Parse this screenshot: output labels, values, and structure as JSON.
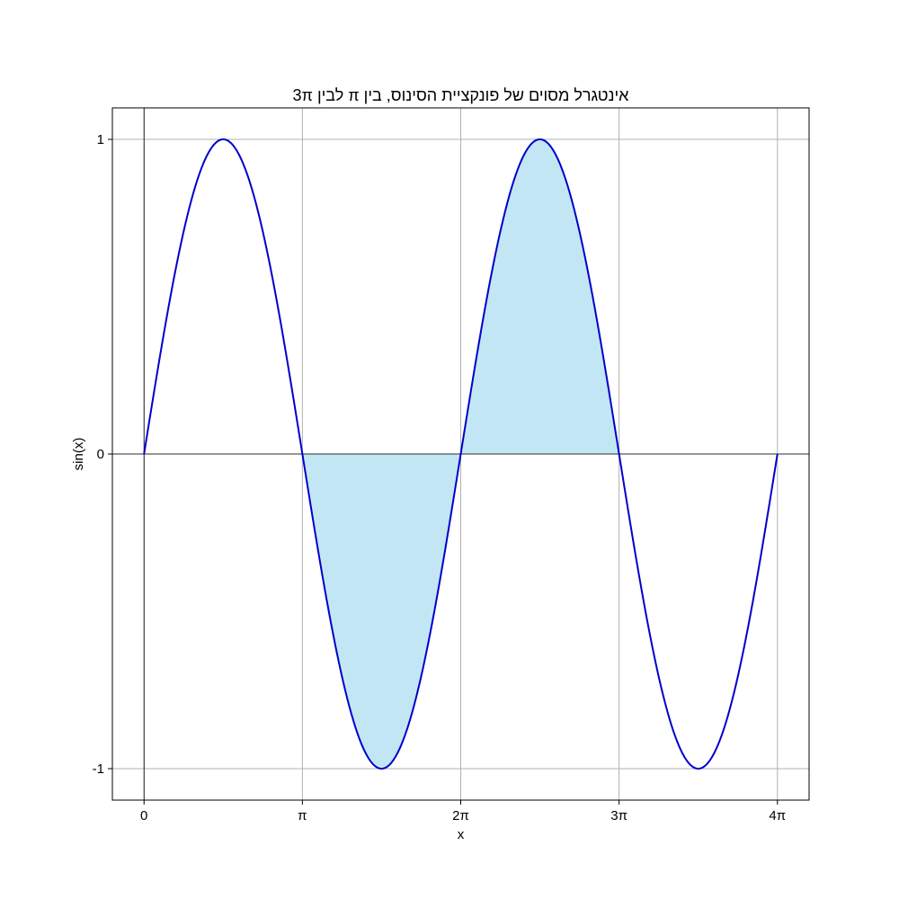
{
  "chart_data": {
    "type": "line",
    "title": "אינטגרל מסוים של פונקציית הסינוס, בין π לבין 3π",
    "xlabel": "x",
    "ylabel": "sin(x)",
    "function": "sin(x)",
    "xlim": [
      -0.6283,
      13.1947
    ],
    "ylim": [
      -1.1,
      1.1
    ],
    "x_range": [
      0,
      12.5664
    ],
    "x_ticks": [
      {
        "value": 0,
        "label": "0"
      },
      {
        "value": 3.14159,
        "label": "π"
      },
      {
        "value": 6.28319,
        "label": "2π"
      },
      {
        "value": 9.42478,
        "label": "3π"
      },
      {
        "value": 12.56637,
        "label": "4π"
      }
    ],
    "y_ticks": [
      {
        "value": -1,
        "label": "-1"
      },
      {
        "value": 0,
        "label": "0"
      },
      {
        "value": 1,
        "label": "1"
      }
    ],
    "shaded_interval": [
      3.14159,
      9.42478
    ],
    "grid": true,
    "colors": {
      "line": "#0000cc",
      "fill": "#87ceeb",
      "grid": "#b0b0b0",
      "axis": "#000000"
    },
    "series": [
      {
        "x": [
          0,
          0.3927,
          0.7854,
          1.1781,
          1.5708,
          1.9635,
          2.3562,
          2.7489,
          3.1416,
          3.5343,
          3.927,
          4.3197,
          4.7124,
          5.1051,
          5.4978,
          5.8905,
          6.2832,
          6.6759,
          7.0686,
          7.4613,
          7.854,
          8.2467,
          8.6394,
          9.0321,
          9.4248,
          9.8175,
          10.2102,
          10.6029,
          10.9956,
          11.3883,
          11.781,
          12.1737,
          12.5664
        ],
        "y": [
          0,
          0.383,
          0.707,
          0.924,
          1,
          0.924,
          0.707,
          0.383,
          0,
          -0.383,
          -0.707,
          -0.924,
          -1,
          -0.924,
          -0.707,
          -0.383,
          0,
          0.383,
          0.707,
          0.924,
          1,
          0.924,
          0.707,
          0.383,
          0,
          -0.383,
          -0.707,
          -0.924,
          -1,
          -0.924,
          -0.707,
          -0.383,
          0
        ]
      }
    ]
  }
}
